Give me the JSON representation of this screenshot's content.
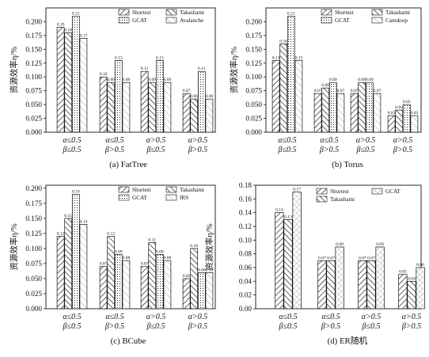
{
  "chart_data": [
    {
      "type": "bar",
      "caption": "(a) FatTree",
      "ylabel": "资源效率η/%",
      "ylim": [
        0,
        0.225
      ],
      "yticks": [
        "0.000",
        "0.025",
        "0.050",
        "0.075",
        "0.100",
        "0.125",
        "0.150",
        "0.175",
        "0.200"
      ],
      "yvalues": [
        0,
        0.025,
        0.05,
        0.075,
        0.1,
        0.125,
        0.15,
        0.175,
        0.2
      ],
      "categories": [
        [
          "α≤0.5",
          "β≤0.5"
        ],
        [
          "α≤0.5",
          "β>0.5"
        ],
        [
          "α>0.5",
          "β≤0.5"
        ],
        [
          "α>0.5",
          "β>0.5"
        ]
      ],
      "legend": [
        "Shortest",
        "Takashami",
        "GCAT",
        "Avalanche"
      ],
      "series": [
        {
          "name": "Shortest",
          "values": [
            0.19,
            0.1,
            0.11,
            0.07
          ]
        },
        {
          "name": "Takashami",
          "values": [
            0.18,
            0.09,
            0.09,
            0.06
          ]
        },
        {
          "name": "GCAT",
          "values": [
            0.21,
            0.13,
            0.13,
            0.11
          ]
        },
        {
          "name": "Avalanche",
          "values": [
            0.17,
            0.09,
            0.09,
            0.06
          ]
        }
      ],
      "labels": [
        [
          "0.19",
          "0.10",
          "0.11",
          "0.07"
        ],
        [
          "0.18",
          "0.09",
          "0.09",
          "0.06"
        ],
        [
          "0.21",
          "0.13",
          "0.13",
          "0.11"
        ],
        [
          "0.17",
          "0.09",
          "0.09",
          "0.06"
        ]
      ]
    },
    {
      "type": "bar",
      "caption": "(b) Torus",
      "ylabel": "资源效率η/%",
      "ylim": [
        0,
        0.225
      ],
      "yticks": [
        "0.000",
        "0.025",
        "0.050",
        "0.075",
        "0.100",
        "0.125",
        "0.150",
        "0.175",
        "0.200"
      ],
      "yvalues": [
        0,
        0.025,
        0.05,
        0.075,
        0.1,
        0.125,
        0.15,
        0.175,
        0.2
      ],
      "categories": [
        [
          "α≤0.5",
          "β≤0.5"
        ],
        [
          "α≤0.5",
          "β>0.5"
        ],
        [
          "α>0.5",
          "β≤0.5"
        ],
        [
          "α>0.5",
          "β>0.5"
        ]
      ],
      "legend": [
        "Shortest",
        "Takashami",
        "GCAT",
        "Camdoop"
      ],
      "series": [
        {
          "name": "Shortest",
          "values": [
            0.13,
            0.07,
            0.07,
            0.03
          ]
        },
        {
          "name": "Takashami",
          "values": [
            0.16,
            0.08,
            0.09,
            0.04
          ]
        },
        {
          "name": "GCAT",
          "values": [
            0.21,
            0.09,
            0.09,
            0.05
          ]
        },
        {
          "name": "Camdoop",
          "values": [
            0.13,
            0.07,
            0.07,
            0.03
          ]
        }
      ],
      "labels": [
        [
          "0.13",
          "0.07",
          "0.07",
          "0.03"
        ],
        [
          "0.16",
          "0.08",
          "0.09",
          "0.04"
        ],
        [
          "0.21",
          "0.09",
          "0.09",
          "0.05"
        ],
        [
          "0.13",
          "0.07",
          "0.07",
          "0.03"
        ]
      ]
    },
    {
      "type": "bar",
      "caption": "(c) BCube",
      "ylabel": "资源效率η/%",
      "ylim": [
        0,
        0.205
      ],
      "yticks": [
        "0.000",
        "0.025",
        "0.050",
        "0.075",
        "0.100",
        "0.125",
        "0.150",
        "0.175",
        "0.200"
      ],
      "yvalues": [
        0,
        0.025,
        0.05,
        0.075,
        0.1,
        0.125,
        0.15,
        0.175,
        0.2
      ],
      "categories": [
        [
          "α≤0.5",
          "β≤0.5"
        ],
        [
          "α≤0.5",
          "β>0.5"
        ],
        [
          "α>0.5",
          "β≤0.5"
        ],
        [
          "α>0.5",
          "β>0.5"
        ]
      ],
      "legend": [
        "Shortest",
        "Takashami",
        "GCAT",
        "IRS"
      ],
      "series": [
        {
          "name": "Shortest",
          "values": [
            0.12,
            0.07,
            0.07,
            0.05
          ]
        },
        {
          "name": "Takashami",
          "values": [
            0.15,
            0.12,
            0.11,
            0.1
          ]
        },
        {
          "name": "GCAT",
          "values": [
            0.19,
            0.09,
            0.09,
            0.06
          ]
        },
        {
          "name": "IRS",
          "values": [
            0.14,
            0.08,
            0.08,
            0.06
          ]
        }
      ],
      "labels": [
        [
          "0.12",
          "0.07",
          "0.07",
          "0.05"
        ],
        [
          "0.15",
          "0.12",
          "0.11",
          "0.10"
        ],
        [
          "0.19",
          "0.09",
          "0.09",
          "0.06"
        ],
        [
          "0.14",
          "0.08",
          "0.08",
          "0.06"
        ]
      ]
    },
    {
      "type": "bar",
      "caption": "(d) ER随机",
      "ylabel": "资源效率η/%",
      "ylim": [
        0,
        0.18
      ],
      "yticks": [
        "0.00",
        "0.02",
        "0.04",
        "0.06",
        "0.08",
        "0.10",
        "0.12",
        "0.14",
        "0.16",
        "0.18"
      ],
      "yvalues": [
        0,
        0.02,
        0.04,
        0.06,
        0.08,
        0.1,
        0.12,
        0.14,
        0.16,
        0.18
      ],
      "categories": [
        [
          "α≤0.5",
          "β≤0.5"
        ],
        [
          "α≤0.5",
          "β>0.5"
        ],
        [
          "α>0.5",
          "β≤0.5"
        ],
        [
          "α>0.5",
          "β>0.5"
        ]
      ],
      "legend": [
        "Shortest",
        "Takashami",
        "GCAT"
      ],
      "series": [
        {
          "name": "Shortest",
          "values": [
            0.14,
            0.07,
            0.07,
            0.05
          ]
        },
        {
          "name": "Takashami",
          "values": [
            0.13,
            0.07,
            0.07,
            0.04
          ]
        },
        {
          "name": "GCAT",
          "values": [
            0.17,
            0.09,
            0.09,
            0.06
          ]
        }
      ],
      "labels": [
        [
          "0.14",
          "0.07",
          "0.07",
          "0.05"
        ],
        [
          "0.13",
          "0.07",
          "0.07",
          "0.04"
        ],
        [
          "0.17",
          "0.09",
          "0.09",
          "0.06"
        ]
      ]
    }
  ]
}
